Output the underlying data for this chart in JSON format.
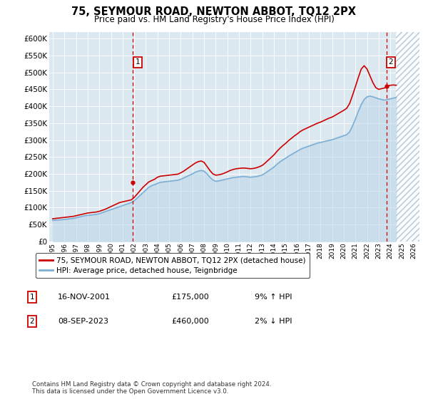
{
  "title": "75, SEYMOUR ROAD, NEWTON ABBOT, TQ12 2PX",
  "subtitle": "Price paid vs. HM Land Registry's House Price Index (HPI)",
  "hpi_years": [
    1995.0,
    1995.25,
    1995.5,
    1995.75,
    1996.0,
    1996.25,
    1996.5,
    1996.75,
    1997.0,
    1997.25,
    1997.5,
    1997.75,
    1998.0,
    1998.25,
    1998.5,
    1998.75,
    1999.0,
    1999.25,
    1999.5,
    1999.75,
    2000.0,
    2000.25,
    2000.5,
    2000.75,
    2001.0,
    2001.25,
    2001.5,
    2001.75,
    2002.0,
    2002.25,
    2002.5,
    2002.75,
    2003.0,
    2003.25,
    2003.5,
    2003.75,
    2004.0,
    2004.25,
    2004.5,
    2004.75,
    2005.0,
    2005.25,
    2005.5,
    2005.75,
    2006.0,
    2006.25,
    2006.5,
    2006.75,
    2007.0,
    2007.25,
    2007.5,
    2007.75,
    2008.0,
    2008.25,
    2008.5,
    2008.75,
    2009.0,
    2009.25,
    2009.5,
    2009.75,
    2010.0,
    2010.25,
    2010.5,
    2010.75,
    2011.0,
    2011.25,
    2011.5,
    2011.75,
    2012.0,
    2012.25,
    2012.5,
    2012.75,
    2013.0,
    2013.25,
    2013.5,
    2013.75,
    2014.0,
    2014.25,
    2014.5,
    2014.75,
    2015.0,
    2015.25,
    2015.5,
    2015.75,
    2016.0,
    2016.25,
    2016.5,
    2016.75,
    2017.0,
    2017.25,
    2017.5,
    2017.75,
    2018.0,
    2018.25,
    2018.5,
    2018.75,
    2019.0,
    2019.25,
    2019.5,
    2019.75,
    2020.0,
    2020.25,
    2020.5,
    2020.75,
    2021.0,
    2021.25,
    2021.5,
    2021.75,
    2022.0,
    2022.25,
    2022.5,
    2022.75,
    2023.0,
    2023.25,
    2023.5,
    2023.75,
    2024.0,
    2024.25,
    2024.5
  ],
  "hpi_values": [
    62000,
    63000,
    63500,
    64000,
    65000,
    66000,
    67000,
    68000,
    70000,
    72000,
    74000,
    76000,
    77000,
    78000,
    79000,
    80000,
    82000,
    85000,
    88000,
    91000,
    94000,
    97000,
    100000,
    103000,
    106000,
    109000,
    112000,
    115000,
    120000,
    128000,
    136000,
    144000,
    152000,
    160000,
    165000,
    168000,
    172000,
    175000,
    176000,
    177000,
    178000,
    179000,
    180000,
    181000,
    184000,
    188000,
    192000,
    196000,
    200000,
    205000,
    208000,
    210000,
    208000,
    200000,
    190000,
    182000,
    178000,
    179000,
    181000,
    183000,
    185000,
    187000,
    189000,
    190000,
    191000,
    192000,
    192000,
    191000,
    190000,
    191000,
    192000,
    194000,
    197000,
    202000,
    208000,
    214000,
    220000,
    228000,
    235000,
    241000,
    246000,
    252000,
    257000,
    262000,
    267000,
    272000,
    276000,
    279000,
    282000,
    285000,
    288000,
    291000,
    293000,
    295000,
    297000,
    299000,
    301000,
    304000,
    307000,
    310000,
    313000,
    316000,
    324000,
    342000,
    362000,
    385000,
    405000,
    420000,
    428000,
    430000,
    428000,
    425000,
    422000,
    420000,
    418000,
    420000,
    422000,
    424000,
    426000
  ],
  "price_years": [
    1995.0,
    1995.25,
    1995.5,
    1995.75,
    1996.0,
    1996.25,
    1996.5,
    1996.75,
    1997.0,
    1997.25,
    1997.5,
    1997.75,
    1998.0,
    1998.25,
    1998.5,
    1998.75,
    1999.0,
    1999.25,
    1999.5,
    1999.75,
    2000.0,
    2000.25,
    2000.5,
    2000.75,
    2001.0,
    2001.25,
    2001.5,
    2001.75,
    2002.0,
    2002.25,
    2002.5,
    2002.75,
    2003.0,
    2003.25,
    2003.5,
    2003.75,
    2004.0,
    2004.25,
    2004.5,
    2004.75,
    2005.0,
    2005.25,
    2005.5,
    2005.75,
    2006.0,
    2006.25,
    2006.5,
    2006.75,
    2007.0,
    2007.25,
    2007.5,
    2007.75,
    2008.0,
    2008.25,
    2008.5,
    2008.75,
    2009.0,
    2009.25,
    2009.5,
    2009.75,
    2010.0,
    2010.25,
    2010.5,
    2010.75,
    2011.0,
    2011.25,
    2011.5,
    2011.75,
    2012.0,
    2012.25,
    2012.5,
    2012.75,
    2013.0,
    2013.25,
    2013.5,
    2013.75,
    2014.0,
    2014.25,
    2014.5,
    2014.75,
    2015.0,
    2015.25,
    2015.5,
    2015.75,
    2016.0,
    2016.25,
    2016.5,
    2016.75,
    2017.0,
    2017.25,
    2017.5,
    2017.75,
    2018.0,
    2018.25,
    2018.5,
    2018.75,
    2019.0,
    2019.25,
    2019.5,
    2019.75,
    2020.0,
    2020.25,
    2020.5,
    2020.75,
    2021.0,
    2021.25,
    2021.5,
    2021.75,
    2022.0,
    2022.25,
    2022.5,
    2022.75,
    2023.0,
    2023.25,
    2023.5,
    2023.75,
    2024.0,
    2024.25,
    2024.5
  ],
  "price_values": [
    67000,
    68000,
    69000,
    70000,
    71000,
    72000,
    73000,
    74000,
    76000,
    78000,
    80000,
    82000,
    84000,
    85000,
    86000,
    87000,
    89000,
    92000,
    95000,
    99000,
    103000,
    107000,
    111000,
    115000,
    117000,
    119000,
    121000,
    123000,
    130000,
    140000,
    150000,
    160000,
    168000,
    176000,
    180000,
    184000,
    190000,
    193000,
    194000,
    195000,
    196000,
    197000,
    198000,
    199000,
    203000,
    208000,
    214000,
    220000,
    226000,
    232000,
    236000,
    238000,
    234000,
    222000,
    210000,
    200000,
    196000,
    197000,
    199000,
    202000,
    206000,
    210000,
    213000,
    215000,
    216000,
    217000,
    217000,
    216000,
    215000,
    216000,
    218000,
    221000,
    225000,
    232000,
    240000,
    248000,
    256000,
    266000,
    275000,
    283000,
    290000,
    298000,
    305000,
    312000,
    318000,
    325000,
    330000,
    334000,
    338000,
    342000,
    346000,
    350000,
    353000,
    357000,
    361000,
    365000,
    368000,
    373000,
    378000,
    383000,
    388000,
    394000,
    408000,
    432000,
    458000,
    485000,
    510000,
    520000,
    510000,
    490000,
    470000,
    455000,
    450000,
    452000,
    454000,
    460000,
    462000,
    463000,
    462000
  ],
  "sale1_year": 2001.88,
  "sale1_price": 175000,
  "sale1_label": "1",
  "sale2_year": 2023.69,
  "sale2_price": 460000,
  "sale2_label": "2",
  "legend1": "75, SEYMOUR ROAD, NEWTON ABBOT, TQ12 2PX (detached house)",
  "legend2": "HPI: Average price, detached house, Teignbridge",
  "table_rows": [
    {
      "label": "1",
      "date": "16-NOV-2001",
      "price": "£175,000",
      "hpi": "9% ↑ HPI"
    },
    {
      "label": "2",
      "date": "08-SEP-2023",
      "price": "£460,000",
      "hpi": "2% ↓ HPI"
    }
  ],
  "footer": "Contains HM Land Registry data © Crown copyright and database right 2024.\nThis data is licensed under the Open Government Licence v3.0.",
  "price_color": "#cc0000",
  "hpi_color": "#7bafd4",
  "hpi_fill_color": "#b8d4e8",
  "bg_color": "#dce8f0",
  "ylim": [
    0,
    620000
  ],
  "yticks": [
    0,
    50000,
    100000,
    150000,
    200000,
    250000,
    300000,
    350000,
    400000,
    450000,
    500000,
    550000,
    600000
  ],
  "xtick_years": [
    1995,
    1996,
    1997,
    1998,
    1999,
    2000,
    2001,
    2002,
    2003,
    2004,
    2005,
    2006,
    2007,
    2008,
    2009,
    2010,
    2011,
    2012,
    2013,
    2014,
    2015,
    2016,
    2017,
    2018,
    2019,
    2020,
    2021,
    2022,
    2023,
    2024,
    2025,
    2026
  ],
  "xmin": 1994.7,
  "xmax": 2026.5,
  "future_start": 2024.5
}
